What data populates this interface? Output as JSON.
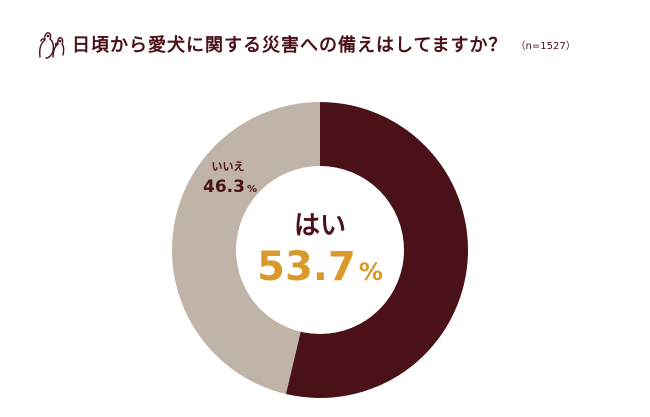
{
  "header": {
    "title": "日頃から愛犬に関する災害への備えはしてますか？",
    "sample_size": "（n=1527）",
    "logo_icon": "dogs-logo-icon"
  },
  "chart_data": {
    "type": "pie",
    "style": "donut",
    "title": "日頃から愛犬に関する災害への備えはしてますか？",
    "slices": [
      {
        "label": "はい",
        "value": 53.7,
        "unit": "%",
        "color": "#4a1118"
      },
      {
        "label": "いいえ",
        "value": 46.3,
        "unit": "%",
        "color": "#bfb4a7"
      }
    ],
    "highlight_color": "#d99a2b"
  }
}
